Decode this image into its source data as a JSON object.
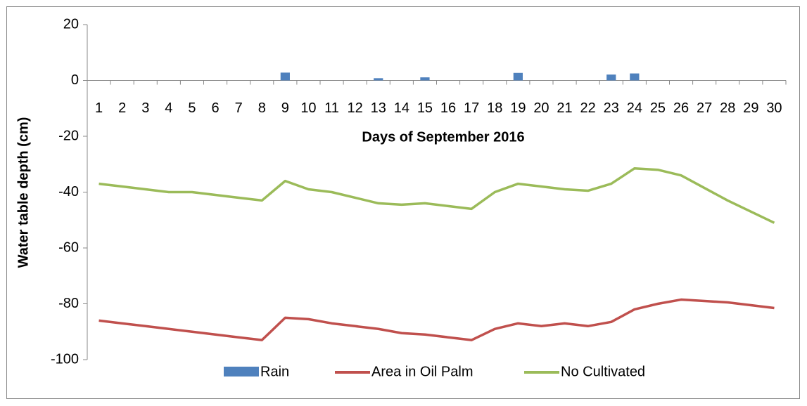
{
  "chart_data": {
    "type": "combo",
    "ylabel": "Water table depth (cm)",
    "xlabel": "Days of September 2016",
    "categories": [
      "1",
      "2",
      "3",
      "4",
      "5",
      "6",
      "7",
      "8",
      "9",
      "10",
      "11",
      "12",
      "13",
      "14",
      "15",
      "16",
      "17",
      "18",
      "19",
      "20",
      "21",
      "22",
      "23",
      "24",
      "25",
      "26",
      "27",
      "28",
      "29",
      "30"
    ],
    "series": [
      {
        "name": "Rain",
        "type": "bar",
        "color": "#4f81bd",
        "values": [
          null,
          null,
          null,
          null,
          null,
          null,
          null,
          null,
          2.8,
          null,
          null,
          null,
          0.8,
          null,
          1.1,
          null,
          null,
          null,
          2.7,
          null,
          null,
          null,
          2.1,
          2.5,
          null,
          null,
          null,
          null,
          null,
          null
        ]
      },
      {
        "name": "Area in Oil Palm",
        "type": "line",
        "color": "#c0504d",
        "values": [
          -86,
          -87,
          -88,
          -89,
          -90,
          -91,
          -92,
          -93,
          -85,
          -85.5,
          -87,
          -88,
          -89,
          -90.5,
          -91,
          -92,
          -93,
          -89,
          -87,
          -88,
          -87,
          -88,
          -86.5,
          -82,
          -80,
          -78.5,
          -79,
          -79.5,
          -80.5,
          -81.5
        ]
      },
      {
        "name": "No Cultivated",
        "type": "line",
        "color": "#9bbb59",
        "values": [
          -37,
          -38,
          -39,
          -40,
          -40,
          -41,
          -42,
          -43,
          -36,
          -39,
          -40,
          -42,
          -44,
          -44.5,
          -44,
          -45,
          -46,
          -40,
          -37,
          -38,
          -39,
          -39.5,
          -37,
          -31.5,
          -32,
          -34,
          -38.5,
          -43,
          -47,
          -51
        ]
      }
    ],
    "ylim": [
      -100,
      20
    ],
    "yticks": [
      -100,
      -80,
      -60,
      -40,
      -20,
      0,
      20
    ],
    "legend": "bottom"
  }
}
